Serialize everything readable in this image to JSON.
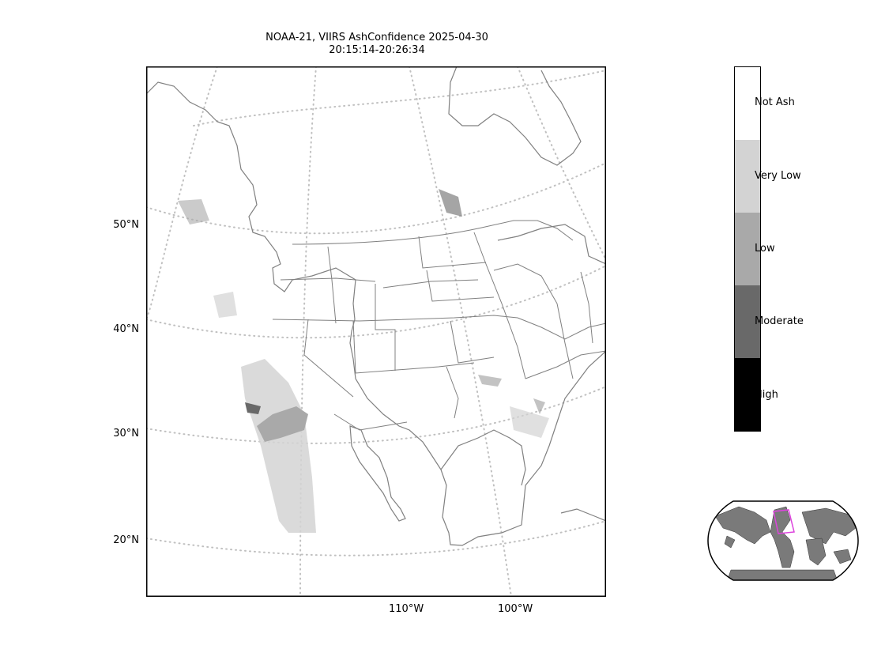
{
  "title": {
    "line1": "NOAA-21, VIIRS AshConfidence 2025-04-30",
    "line2": "20:15:14-20:26:34"
  },
  "map": {
    "lat_labels": [
      "50°N",
      "40°N",
      "30°N",
      "20°N"
    ],
    "lon_labels": [
      "110°W",
      "100°W"
    ]
  },
  "colorbar": {
    "categories": [
      {
        "label": "Not Ash",
        "color": "#ffffff"
      },
      {
        "label": "Very Low",
        "color": "#d3d3d3"
      },
      {
        "label": "Low",
        "color": "#a9a9a9"
      },
      {
        "label": "Moderate",
        "color": "#696969"
      },
      {
        "label": "High",
        "color": "#000000"
      }
    ]
  },
  "colors": {
    "coastline": "#808080",
    "graticule": "#c0c0c0",
    "inset_land": "#7a7a7a",
    "inset_box": "#dd44dd"
  }
}
